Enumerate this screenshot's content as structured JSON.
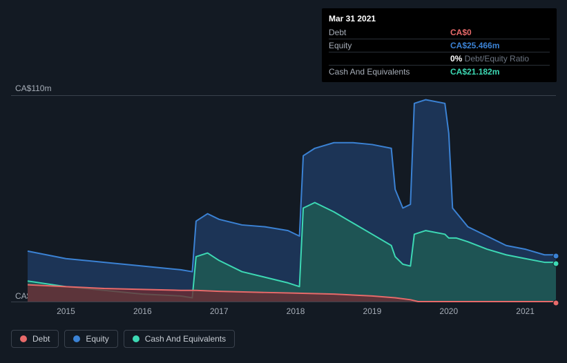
{
  "chart": {
    "type": "area",
    "background_color": "#131a23",
    "grid_color": "#3a424d",
    "y_axis": {
      "min": 0,
      "max": 110,
      "top_label": "CA$110m",
      "bottom_label": "CA$0"
    },
    "x_axis": {
      "min": 2014.5,
      "max": 2021.4,
      "ticks": [
        2015,
        2016,
        2017,
        2018,
        2019,
        2020,
        2021
      ],
      "tick_labels": [
        "2015",
        "2016",
        "2017",
        "2018",
        "2019",
        "2020",
        "2021"
      ]
    },
    "series": [
      {
        "id": "equity",
        "label": "Equity",
        "stroke": "#3b82d4",
        "fill": "#1e3a5f",
        "fill_opacity": 0.85,
        "z": 1,
        "points": [
          [
            2014.5,
            27
          ],
          [
            2015.0,
            23
          ],
          [
            2015.5,
            21
          ],
          [
            2016.0,
            19
          ],
          [
            2016.5,
            17
          ],
          [
            2016.65,
            16
          ],
          [
            2016.7,
            43
          ],
          [
            2016.85,
            47
          ],
          [
            2017.0,
            44
          ],
          [
            2017.3,
            41
          ],
          [
            2017.6,
            40
          ],
          [
            2017.9,
            38
          ],
          [
            2018.05,
            35
          ],
          [
            2018.1,
            78
          ],
          [
            2018.25,
            82
          ],
          [
            2018.5,
            85
          ],
          [
            2018.75,
            85
          ],
          [
            2019.0,
            84
          ],
          [
            2019.25,
            82
          ],
          [
            2019.3,
            60
          ],
          [
            2019.4,
            50
          ],
          [
            2019.5,
            52
          ],
          [
            2019.55,
            106
          ],
          [
            2019.7,
            108
          ],
          [
            2019.95,
            106
          ],
          [
            2020.0,
            90
          ],
          [
            2020.05,
            50
          ],
          [
            2020.25,
            40
          ],
          [
            2020.5,
            35
          ],
          [
            2020.75,
            30
          ],
          [
            2021.0,
            28
          ],
          [
            2021.25,
            25
          ],
          [
            2021.4,
            25
          ]
        ]
      },
      {
        "id": "cash",
        "label": "Cash And Equivalents",
        "stroke": "#3dd9b4",
        "fill": "#1f5a54",
        "fill_opacity": 0.85,
        "z": 2,
        "points": [
          [
            2014.5,
            11
          ],
          [
            2015.0,
            8
          ],
          [
            2015.5,
            6
          ],
          [
            2016.0,
            4
          ],
          [
            2016.5,
            3
          ],
          [
            2016.65,
            2
          ],
          [
            2016.7,
            24
          ],
          [
            2016.85,
            26
          ],
          [
            2017.0,
            22
          ],
          [
            2017.3,
            16
          ],
          [
            2017.6,
            13
          ],
          [
            2017.9,
            10
          ],
          [
            2018.05,
            8
          ],
          [
            2018.1,
            50
          ],
          [
            2018.25,
            53
          ],
          [
            2018.5,
            48
          ],
          [
            2018.75,
            42
          ],
          [
            2019.0,
            36
          ],
          [
            2019.25,
            30
          ],
          [
            2019.3,
            24
          ],
          [
            2019.4,
            20
          ],
          [
            2019.5,
            19
          ],
          [
            2019.55,
            36
          ],
          [
            2019.7,
            38
          ],
          [
            2019.95,
            36
          ],
          [
            2020.0,
            34
          ],
          [
            2020.1,
            34
          ],
          [
            2020.25,
            32
          ],
          [
            2020.5,
            28
          ],
          [
            2020.75,
            25
          ],
          [
            2021.0,
            23
          ],
          [
            2021.25,
            21
          ],
          [
            2021.4,
            21
          ]
        ]
      },
      {
        "id": "debt",
        "label": "Debt",
        "stroke": "#e86a6a",
        "fill": "#6b2c33",
        "fill_opacity": 0.8,
        "z": 3,
        "points": [
          [
            2014.5,
            9
          ],
          [
            2015.0,
            8
          ],
          [
            2015.5,
            7
          ],
          [
            2016.0,
            6.5
          ],
          [
            2016.5,
            6
          ],
          [
            2016.7,
            6
          ],
          [
            2017.0,
            5.5
          ],
          [
            2017.5,
            5
          ],
          [
            2018.0,
            4.5
          ],
          [
            2018.5,
            4
          ],
          [
            2019.0,
            3
          ],
          [
            2019.3,
            2
          ],
          [
            2019.5,
            1
          ],
          [
            2019.6,
            0
          ],
          [
            2020.0,
            0
          ],
          [
            2020.5,
            0
          ],
          [
            2021.0,
            0
          ],
          [
            2021.4,
            0
          ]
        ]
      }
    ],
    "end_markers": [
      {
        "series": "equity",
        "x": 2021.4,
        "y": 25,
        "color": "#3b82d4"
      },
      {
        "series": "cash",
        "x": 2021.4,
        "y": 21,
        "color": "#3dd9b4"
      },
      {
        "series": "debt",
        "x": 2021.4,
        "y": 0,
        "color": "#e86a6a"
      }
    ]
  },
  "tooltip": {
    "date": "Mar 31 2021",
    "rows": [
      {
        "label": "Debt",
        "value": "CA$0",
        "value_color": "#e86a6a"
      },
      {
        "label": "Equity",
        "value": "CA$25.466m",
        "value_color": "#3b82d4"
      },
      {
        "label": "",
        "value_prefix": "0%",
        "value_suffix": " Debt/Equity Ratio",
        "prefix_color": "#ffffff",
        "suffix_color": "#6d7683"
      },
      {
        "label": "Cash And Equivalents",
        "value": "CA$21.182m",
        "value_color": "#3dd9b4"
      }
    ]
  },
  "legend": [
    {
      "id": "debt",
      "label": "Debt",
      "color": "#e86a6a"
    },
    {
      "id": "equity",
      "label": "Equity",
      "color": "#3b82d4"
    },
    {
      "id": "cash",
      "label": "Cash And Equivalents",
      "color": "#3dd9b4"
    }
  ]
}
